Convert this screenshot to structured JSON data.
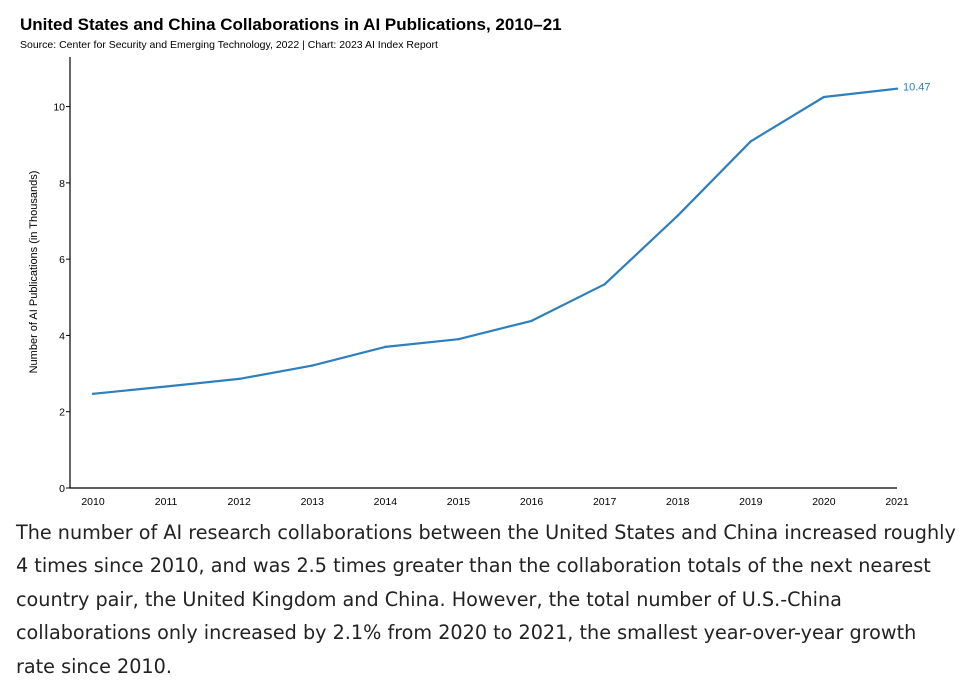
{
  "chart_data": {
    "type": "line",
    "title": "United States and China Collaborations in AI Publications, 2010–21",
    "subtitle": "Source: Center for Security and Emerging Technology, 2022 | Chart: 2023 AI Index Report",
    "xlabel": "",
    "ylabel": "Number of AI Publications (in Thousands)",
    "x": [
      2010,
      2011,
      2012,
      2013,
      2014,
      2015,
      2016,
      2017,
      2018,
      2019,
      2020,
      2021
    ],
    "series": [
      {
        "values": [
          2.47,
          2.66,
          2.86,
          3.21,
          3.7,
          3.9,
          4.38,
          5.34,
          7.14,
          9.09,
          10.25,
          10.47
        ],
        "color": "#2e7fbf"
      }
    ],
    "yticks": [
      0,
      2,
      4,
      6,
      8,
      10
    ],
    "ylim": [
      0,
      11.3
    ],
    "end_label": "10.47",
    "grid": false,
    "legend": "none"
  },
  "caption": "The number of AI research collaborations between the United States and China increased roughly 4 times since 2010, and was 2.5 times greater than the collaboration totals of the next nearest country pair, the United Kingdom and China. However, the total number of U.S.-China collaborations only increased by 2.1% from 2020 to 2021, the smallest year-over-year growth rate since 2010."
}
